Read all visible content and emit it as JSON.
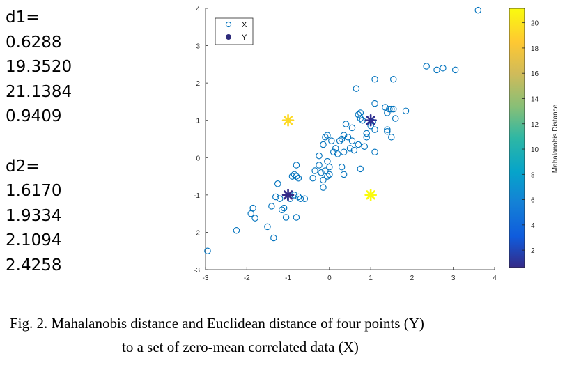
{
  "side_values": {
    "d1_label": "d1=",
    "d1_values": [
      "0.6288",
      "19.3520",
      "21.1384",
      "0.9409"
    ],
    "d2_label": "d2=",
    "d2_values": [
      "1.6170",
      "1.9334",
      "2.1094",
      "2.4258"
    ]
  },
  "caption": {
    "line1": "Fig. 2. Mahalanobis distance and Euclidean distance of four points (Y)",
    "line2": "to a set of zero-mean correlated data (X)"
  },
  "chart_data": {
    "type": "scatter",
    "title": "",
    "xlabel": "",
    "ylabel": "",
    "xlim": [
      -3,
      4
    ],
    "ylim": [
      -3,
      4
    ],
    "xticks": [
      -3,
      -2,
      -1,
      0,
      1,
      2,
      3,
      4
    ],
    "yticks": [
      -3,
      -2,
      -1,
      0,
      1,
      2,
      3,
      4
    ],
    "grid": false,
    "legend": {
      "position": "top-left",
      "entries": [
        "X",
        "Y"
      ]
    },
    "colorbar": {
      "label": "Mahalanobis Distance",
      "range": [
        0.6288,
        21.1384
      ],
      "ticks": [
        2,
        4,
        6,
        8,
        10,
        12,
        14,
        16,
        18,
        20
      ],
      "colormap": "parula"
    },
    "series": [
      {
        "name": "X",
        "marker": "open-circle",
        "color": "#0072BD",
        "points": [
          [
            -2.95,
            -2.5
          ],
          [
            -2.25,
            -1.95
          ],
          [
            -1.9,
            -1.5
          ],
          [
            -1.85,
            -1.35
          ],
          [
            -1.8,
            -1.62
          ],
          [
            -1.5,
            -1.85
          ],
          [
            -1.35,
            -2.15
          ],
          [
            -1.4,
            -1.3
          ],
          [
            -1.3,
            -1.05
          ],
          [
            -1.2,
            -1.1
          ],
          [
            -1.1,
            -1.35
          ],
          [
            -1.15,
            -1.4
          ],
          [
            -1.25,
            -0.7
          ],
          [
            -1.05,
            -1.6
          ],
          [
            -0.95,
            -1.1
          ],
          [
            -0.8,
            -1.6
          ],
          [
            -0.85,
            -1.0
          ],
          [
            -0.75,
            -1.05
          ],
          [
            -0.7,
            -1.1
          ],
          [
            -0.9,
            -0.5
          ],
          [
            -0.8,
            -0.5
          ],
          [
            -0.85,
            -0.45
          ],
          [
            -0.75,
            -0.55
          ],
          [
            -0.8,
            -0.2
          ],
          [
            -0.6,
            -1.1
          ],
          [
            -0.4,
            -0.55
          ],
          [
            -0.35,
            -0.35
          ],
          [
            -0.25,
            -0.2
          ],
          [
            -0.2,
            -0.4
          ],
          [
            -0.15,
            -0.8
          ],
          [
            -0.15,
            -0.6
          ],
          [
            -0.1,
            -0.35
          ],
          [
            -0.05,
            -0.5
          ],
          [
            -0.05,
            -0.1
          ],
          [
            0.0,
            -0.45
          ],
          [
            0.0,
            -0.25
          ],
          [
            -0.25,
            0.05
          ],
          [
            -0.15,
            0.35
          ],
          [
            -0.1,
            0.55
          ],
          [
            -0.05,
            0.6
          ],
          [
            0.05,
            0.45
          ],
          [
            0.1,
            0.15
          ],
          [
            0.15,
            0.25
          ],
          [
            0.2,
            0.1
          ],
          [
            0.25,
            0.45
          ],
          [
            0.3,
            0.5
          ],
          [
            0.3,
            -0.25
          ],
          [
            0.35,
            -0.45
          ],
          [
            0.35,
            0.15
          ],
          [
            0.35,
            0.6
          ],
          [
            0.4,
            0.9
          ],
          [
            0.45,
            0.55
          ],
          [
            0.5,
            0.25
          ],
          [
            0.55,
            0.8
          ],
          [
            0.55,
            0.45
          ],
          [
            0.6,
            0.2
          ],
          [
            0.65,
            1.85
          ],
          [
            0.7,
            0.35
          ],
          [
            0.7,
            1.15
          ],
          [
            0.75,
            1.2
          ],
          [
            0.75,
            1.05
          ],
          [
            0.75,
            -0.3
          ],
          [
            0.8,
            1.0
          ],
          [
            0.85,
            0.3
          ],
          [
            0.9,
            0.55
          ],
          [
            0.9,
            0.65
          ],
          [
            1.0,
            0.85
          ],
          [
            1.05,
            0.95
          ],
          [
            1.1,
            0.75
          ],
          [
            1.1,
            0.15
          ],
          [
            1.1,
            1.45
          ],
          [
            1.1,
            2.1
          ],
          [
            1.35,
            1.35
          ],
          [
            1.4,
            0.7
          ],
          [
            1.4,
            0.75
          ],
          [
            1.4,
            1.2
          ],
          [
            1.45,
            1.3
          ],
          [
            1.5,
            1.3
          ],
          [
            1.55,
            1.3
          ],
          [
            1.55,
            2.1
          ],
          [
            1.6,
            1.05
          ],
          [
            1.5,
            0.55
          ],
          [
            1.85,
            1.25
          ],
          [
            2.35,
            2.45
          ],
          [
            2.6,
            2.35
          ],
          [
            2.75,
            2.4
          ],
          [
            3.05,
            2.35
          ],
          [
            3.6,
            3.95
          ]
        ]
      },
      {
        "name": "Y",
        "marker": "asterisk",
        "points": [
          {
            "x": -1.0,
            "y": -1.0,
            "mahalanobis": 0.6288
          },
          {
            "x": -1.0,
            "y": 1.0,
            "mahalanobis": 19.352
          },
          {
            "x": 1.0,
            "y": -1.0,
            "mahalanobis": 21.1384
          },
          {
            "x": 1.0,
            "y": 1.0,
            "mahalanobis": 0.9409
          }
        ]
      }
    ]
  }
}
